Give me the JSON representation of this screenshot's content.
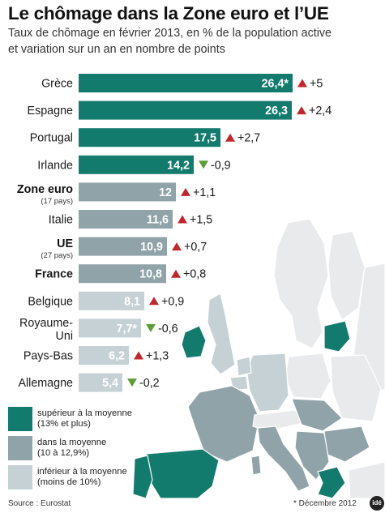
{
  "header": {
    "title": "Le chômage dans la Zone euro et l’UE",
    "subtitle_line1": "Taux de chômage en février 2013, en % de la population active",
    "subtitle_line2": "et variation sur un an en nombre de points"
  },
  "chart_data": {
    "type": "bar",
    "orientation": "horizontal",
    "title": "Le chômage dans la Zone euro et l’UE",
    "unit": "%",
    "categories": [
      "Grèce",
      "Espagne",
      "Portugal",
      "Irlande",
      "Zone euro",
      "Italie",
      "UE",
      "France",
      "Belgique",
      "Royaume-Uni",
      "Pays-Bas",
      "Allemagne"
    ],
    "category_lines": [
      [
        "Grèce"
      ],
      [
        "Espagne"
      ],
      [
        "Portugal"
      ],
      [
        "Irlande"
      ],
      [
        "Zone euro"
      ],
      [
        "Italie"
      ],
      [
        "UE"
      ],
      [
        "France"
      ],
      [
        "Belgique"
      ],
      [
        "Royaume-",
        "Uni"
      ],
      [
        "Pays-Bas"
      ],
      [
        "Allemagne"
      ]
    ],
    "category_notes": [
      "",
      "",
      "",
      "",
      "(17 pays)",
      "",
      "(27 pays)",
      "",
      "",
      "",
      "",
      ""
    ],
    "bold_categories": [
      "Zone euro",
      "UE",
      "France"
    ],
    "values": [
      26.4,
      26.3,
      17.5,
      14.2,
      12,
      11.6,
      10.9,
      10.8,
      8.1,
      7.7,
      6.2,
      5.4
    ],
    "value_labels": [
      "26,4*",
      "26,3",
      "17,5",
      "14,2",
      "12",
      "11,6",
      "10,9",
      "10,8",
      "8,1",
      "7,7*",
      "6,2",
      "5,4"
    ],
    "changes": [
      5,
      2.4,
      2.7,
      -0.9,
      1.1,
      1.5,
      0.7,
      0.8,
      0.9,
      -0.6,
      1.3,
      -0.2
    ],
    "change_labels": [
      "+5",
      "+2,4",
      "+2,7",
      "-0,9",
      "+1,1",
      "+1,5",
      "+0,7",
      "+0,8",
      "+0,9",
      "-0,6",
      "+1,3",
      "-0,2"
    ],
    "groups": [
      "high",
      "high",
      "high",
      "high",
      "mid",
      "mid",
      "mid",
      "mid",
      "low",
      "low",
      "low",
      "low"
    ],
    "xlim": [
      0,
      27
    ]
  },
  "legend": {
    "items": [
      {
        "key": "high",
        "line1": "supérieur à la moyenne",
        "line2": "(13% et plus)",
        "color": "#137a6e"
      },
      {
        "key": "mid",
        "line1": "dans la moyenne",
        "line2": "(10 à 12,9%)",
        "color": "#8fa3a9"
      },
      {
        "key": "low",
        "line1": "inférieur à la moyenne",
        "line2": "(moins de 10%)",
        "color": "#c6d1d5"
      }
    ]
  },
  "colors": {
    "up": "#c0272d",
    "down": "#5c9d35",
    "map_background": "#e8eaeb",
    "map_border": "#ffffff"
  },
  "footer": {
    "source": "Source : Eurostat",
    "note": "* Décembre 2012",
    "logo": "idé"
  }
}
